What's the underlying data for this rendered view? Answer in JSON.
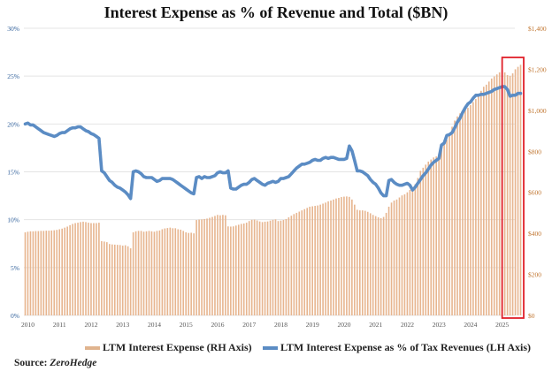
{
  "chart_data": {
    "type": "bar+line",
    "title": "Interest Expense as % of  Revenue and Total ($BN)",
    "x_start": "2010-01",
    "x_frequency": "monthly",
    "x_ticks": [
      "2010",
      "2011",
      "2012",
      "2013",
      "2014",
      "2015",
      "2016",
      "2017",
      "2018",
      "2019",
      "2020",
      "2021",
      "2022",
      "2023",
      "2024",
      "2025"
    ],
    "left_axis": {
      "ticks": [
        "0%",
        "5%",
        "10%",
        "15%",
        "20%",
        "25%",
        "30%"
      ],
      "range": [
        0,
        30
      ],
      "color": "#2f5f9a"
    },
    "right_axis": {
      "ticks": [
        "$0",
        "$200",
        "$400",
        "$600",
        "$800",
        "$1,000",
        "$1,200",
        "$1,400"
      ],
      "range": [
        0,
        1400
      ],
      "color": "#c0742e"
    },
    "grid": true,
    "legend_position": "bottom",
    "highlight": {
      "from": "2025-06",
      "to": "2025-09",
      "color": "#e0202a"
    },
    "series": [
      {
        "name": "LTM Interest Expense (RH Axis)",
        "type": "bar",
        "axis": "right",
        "color": "#e7b58f",
        "values": [
          405,
          408,
          410,
          410,
          411,
          411,
          412,
          412,
          413,
          413,
          414,
          415,
          417,
          420,
          423,
          428,
          433,
          440,
          446,
          450,
          452,
          455,
          457,
          455,
          452,
          450,
          450,
          450,
          452,
          362,
          360,
          357,
          348,
          346,
          345,
          344,
          343,
          340,
          342,
          337,
          327,
          405,
          410,
          412,
          412,
          408,
          410,
          412,
          410,
          408,
          412,
          414,
          420,
          424,
          426,
          428,
          425,
          425,
          420,
          418,
          412,
          405,
          402,
          403,
          400,
          465,
          467,
          468,
          470,
          472,
          476,
          480,
          485,
          490,
          488,
          490,
          488,
          434,
          433,
          434,
          438,
          442,
          446,
          448,
          452,
          460,
          466,
          467,
          463,
          458,
          455,
          457,
          458,
          462,
          466,
          468,
          460,
          462,
          465,
          470,
          478,
          486,
          494,
          500,
          506,
          512,
          518,
          524,
          530,
          532,
          534,
          536,
          540,
          545,
          550,
          556,
          560,
          565,
          570,
          573,
          577,
          579,
          580,
          578,
          565,
          540,
          515,
          512,
          512,
          510,
          505,
          498,
          490,
          484,
          478,
          474,
          480,
          500,
          530,
          550,
          560,
          565,
          575,
          585,
          590,
          600,
          612,
          625,
          640,
          670,
          705,
          720,
          735,
          750,
          760,
          770,
          775,
          790,
          810,
          835,
          857,
          880,
          920,
          950,
          970,
          985,
          995,
          1005,
          1012,
          1025,
          1040,
          1055,
          1075,
          1095,
          1115,
          1125,
          1140,
          1155,
          1165,
          1175,
          1185,
          1190,
          1185,
          1172,
          1168,
          1180,
          1200,
          1212,
          1222
        ]
      },
      {
        "name": "LTM Interest Expense as % of Tax Revenues (LH Axis)",
        "type": "line",
        "axis": "left",
        "color": "#5b8cc4",
        "values": [
          20.0,
          20.1,
          19.9,
          19.9,
          19.7,
          19.5,
          19.3,
          19.1,
          19.0,
          18.9,
          18.8,
          18.7,
          18.8,
          19.0,
          19.1,
          19.1,
          19.3,
          19.5,
          19.6,
          19.6,
          19.7,
          19.7,
          19.5,
          19.3,
          19.2,
          19.0,
          18.9,
          18.7,
          18.5,
          15.1,
          14.9,
          14.5,
          14.1,
          13.9,
          13.6,
          13.4,
          13.3,
          13.1,
          12.9,
          12.6,
          12.2,
          15.0,
          15.1,
          15.0,
          14.8,
          14.5,
          14.4,
          14.4,
          14.4,
          14.2,
          14.0,
          14.1,
          14.3,
          14.3,
          14.3,
          14.3,
          14.2,
          14.0,
          13.8,
          13.6,
          13.4,
          13.2,
          13.0,
          12.8,
          12.7,
          14.4,
          14.5,
          14.3,
          14.5,
          14.4,
          14.4,
          14.5,
          14.6,
          14.9,
          15.0,
          14.9,
          14.9,
          15.1,
          13.3,
          13.2,
          13.2,
          13.4,
          13.6,
          13.7,
          13.7,
          13.9,
          14.2,
          14.3,
          14.1,
          13.9,
          13.7,
          13.6,
          13.8,
          13.9,
          14.0,
          13.9,
          14.0,
          14.3,
          14.3,
          14.4,
          14.5,
          14.8,
          15.1,
          15.4,
          15.6,
          15.8,
          15.8,
          15.9,
          16.0,
          16.2,
          16.3,
          16.2,
          16.2,
          16.4,
          16.5,
          16.4,
          16.5,
          16.5,
          16.4,
          16.3,
          16.3,
          16.3,
          16.4,
          17.7,
          17.2,
          16.2,
          15.1,
          15.1,
          15.0,
          14.8,
          14.6,
          14.2,
          13.9,
          13.7,
          13.3,
          12.8,
          12.5,
          12.5,
          14.1,
          14.2,
          13.9,
          13.7,
          13.6,
          13.6,
          13.7,
          13.8,
          13.6,
          13.1,
          13.4,
          13.8,
          14.2,
          14.6,
          14.9,
          15.3,
          15.7,
          16.0,
          16.2,
          16.4,
          17.8,
          18.0,
          18.8,
          18.9,
          19.1,
          19.6,
          20.2,
          20.6,
          21.2,
          21.7,
          22.1,
          22.3,
          22.7,
          23.0,
          23.0,
          23.1,
          23.1,
          23.2,
          23.3,
          23.4,
          23.6,
          23.7,
          23.8,
          23.9,
          23.9,
          23.6,
          22.9,
          23.0,
          23.0,
          23.2,
          23.2
        ]
      }
    ]
  },
  "legend": {
    "bar_label": "LTM Interest Expense (RH Axis)",
    "line_label": "LTM Interest Expense as % of Tax Revenues (LH Axis)"
  },
  "source": {
    "label": "Source:",
    "name": "ZeroHedge"
  }
}
